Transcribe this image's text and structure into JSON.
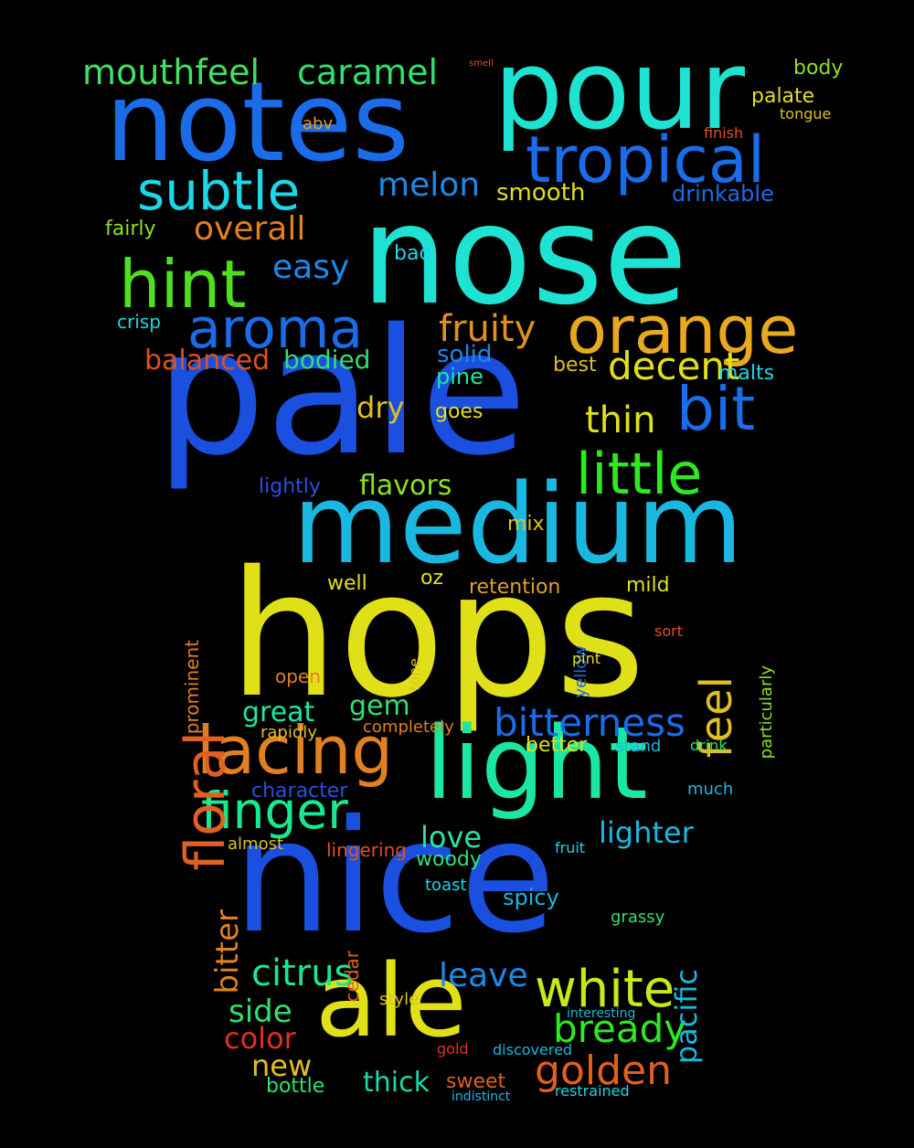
{
  "words": [
    [
      "nose",
      "#1fe3d2"
    ],
    [
      "pale",
      "#1a4fe0"
    ],
    [
      "hops",
      "#e0e018"
    ],
    [
      "nice",
      "#1a4fe0"
    ],
    [
      "medium",
      "#1ab8e0"
    ],
    [
      "notes",
      "#1a6ce8"
    ],
    [
      "pour",
      "#1fe3d2"
    ],
    [
      "light",
      "#1ae8a0"
    ],
    [
      "ale",
      "#e0e018"
    ],
    [
      "orange",
      "#e8a820"
    ],
    [
      "aroma",
      "#1a6ce8"
    ],
    [
      "lacing",
      "#e08020"
    ],
    [
      "finger",
      "#1ae890"
    ],
    [
      "tropical",
      "#1a6ce8"
    ],
    [
      "subtle",
      "#1ad8e8"
    ],
    [
      "hint",
      "#4ee020"
    ],
    [
      "little",
      "#2ee820"
    ],
    [
      "floral",
      "#e06020"
    ],
    [
      "bit",
      "#1a6ce8"
    ],
    [
      "bitterness",
      "#1a6ce8"
    ],
    [
      "white",
      "#c8e818"
    ],
    [
      "feel",
      "#e0c020"
    ],
    [
      "mouthfeel",
      "#40e060"
    ],
    [
      "caramel",
      "#30e070"
    ],
    [
      "citrus",
      "#1ae890"
    ],
    [
      "golden",
      "#e06020"
    ],
    [
      "bready",
      "#2ee820"
    ],
    [
      "thin",
      "#e0e018"
    ],
    [
      "decent",
      "#e0e018"
    ],
    [
      "fruity",
      "#e09020"
    ],
    [
      "bitter",
      "#e08020"
    ],
    [
      "pacific",
      "#1ab8e0"
    ],
    [
      "overall",
      "#e08020"
    ],
    [
      "easy",
      "#1a8ae8"
    ],
    [
      "melon",
      "#1a8ae8"
    ],
    [
      "love",
      "#30e0a0"
    ],
    [
      "leave",
      "#1a8ae8"
    ],
    [
      "lighter",
      "#1ab8e0"
    ],
    [
      "side",
      "#30e070"
    ],
    [
      "new",
      "#e0c020"
    ],
    [
      "thick",
      "#1ad8a8"
    ],
    [
      "color",
      "#e03020"
    ],
    [
      "flavors",
      "#8ee020"
    ],
    [
      "gem",
      "#30e070"
    ],
    [
      "great",
      "#1ae8a0"
    ],
    [
      "balanced",
      "#e05020"
    ],
    [
      "bodied",
      "#30e070"
    ],
    [
      "dry",
      "#e0c020"
    ],
    [
      "smooth",
      "#e0e018"
    ],
    [
      "drinkable",
      "#1a6ce8"
    ],
    [
      "character",
      "#2a50e0"
    ],
    [
      "spicy",
      "#1ab8e0"
    ],
    [
      "crisp",
      "#1ad8e8"
    ],
    [
      "fairly",
      "#8ee020"
    ],
    [
      "solid",
      "#1a8ae8"
    ],
    [
      "pine",
      "#1ae8a0"
    ],
    [
      "mix",
      "#e0c020"
    ],
    [
      "well",
      "#e0e018"
    ],
    [
      "oz",
      "#e0e018"
    ],
    [
      "retention",
      "#e0a020"
    ],
    [
      "mild",
      "#e0e018"
    ],
    [
      "body",
      "#8ee020"
    ],
    [
      "palate",
      "#e0e018"
    ],
    [
      "bad",
      "#1ad8e8"
    ],
    [
      "sweet",
      "#e06020"
    ],
    [
      "bottle",
      "#30e070"
    ],
    [
      "restrained",
      "#1ad8e8"
    ],
    [
      "woody",
      "#30e070"
    ],
    [
      "lightly",
      "#2a50e0"
    ],
    [
      "best",
      "#e0c020"
    ],
    [
      "malts",
      "#1ad8e8"
    ],
    [
      "goes",
      "#e0e018"
    ],
    [
      "lingering",
      "#e05020"
    ],
    [
      "cedar",
      "#e06020"
    ],
    [
      "fruit",
      "#1ad8e8"
    ],
    [
      "toast",
      "#1ad8e8"
    ],
    [
      "grassy",
      "#30e070"
    ],
    [
      "stand",
      "#1ab8e0"
    ],
    [
      "drink",
      "#30e070"
    ],
    [
      "much",
      "#1ab8e0"
    ],
    [
      "better",
      "#e0e018"
    ],
    [
      "completely",
      "#e08020"
    ],
    [
      "rapidly",
      "#e0c020"
    ],
    [
      "prominent",
      "#e08020"
    ],
    [
      "particularly",
      "#8ee020"
    ],
    [
      "style",
      "#e0c020"
    ],
    [
      "gold",
      "#e03020"
    ],
    [
      "interesting",
      "#1ab8e0"
    ],
    [
      "discovered",
      "#1ab8e0"
    ],
    [
      "indistinct",
      "#1ab8e0"
    ],
    [
      "open",
      "#e08020"
    ],
    [
      "almost",
      "#e0c020"
    ],
    [
      "yellow",
      "#1a6ce8"
    ],
    [
      "tone",
      "#e0c020"
    ],
    [
      "pint",
      "#e0e018"
    ],
    [
      "sort",
      "#e05020"
    ],
    [
      "abv",
      "#e0a020"
    ],
    [
      "tongue",
      "#e0c020"
    ],
    [
      "finish",
      "#e05020"
    ],
    [
      "smell",
      "#e05020"
    ]
  ]
}
